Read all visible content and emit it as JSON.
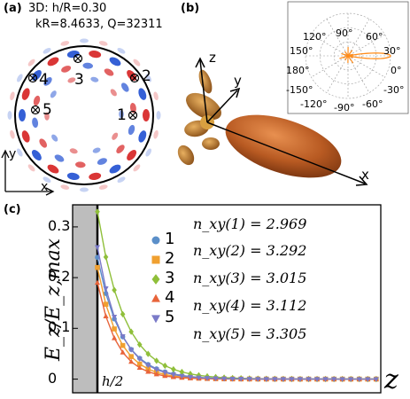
{
  "panel_a": {
    "label": "(a)",
    "line1": "3D: h/R=0.30",
    "line2": "kR=8.4633, Q=32311",
    "marker_labels": [
      "1",
      "2",
      "3",
      "4",
      "5"
    ],
    "axis_x": "x",
    "axis_y": "y",
    "colors": {
      "positive": "#d62020",
      "negative": "#1f4fd1",
      "boundary": "#000000"
    }
  },
  "panel_b": {
    "label": "(b)",
    "axis_x": "x",
    "axis_y": "y",
    "axis_z": "z",
    "polar_ticks": [
      "120°",
      "90°",
      "60°",
      "150°",
      "30°",
      "180°",
      "0°",
      "-150°",
      "-30°",
      "-120°",
      "-90°",
      "-60°"
    ],
    "colors": {
      "lobe": "#c86a2a",
      "polar_line": "#ff8c1a"
    }
  },
  "panel_c": {
    "label": "(c)",
    "ylabel": "E_z/E_z,max",
    "xlabel": "z",
    "boundary_label": "h/2",
    "nxy_lines": [
      "n_xy(1) = 2.969",
      "n_xy(2) = 3.292",
      "n_xy(3) = 3.015",
      "n_xy(4) = 3.112",
      "n_xy(5) = 3.305"
    ]
  },
  "chart_data": {
    "type": "scatter",
    "xlabel": "z",
    "ylabel": "Ez/Ez,max",
    "yticks": [
      0,
      0.1,
      0.2,
      0.3
    ],
    "ylim": [
      -0.02,
      0.34
    ],
    "xlim": [
      0,
      1
    ],
    "x": [
      0.0,
      0.03,
      0.06,
      0.09,
      0.12,
      0.15,
      0.18,
      0.21,
      0.24,
      0.27,
      0.3,
      0.33,
      0.36,
      0.39,
      0.42,
      0.45,
      0.48,
      0.51,
      0.54,
      0.57,
      0.6,
      0.63,
      0.66,
      0.69,
      0.72,
      0.75,
      0.78,
      0.81,
      0.84,
      0.87,
      0.9,
      0.93,
      0.96,
      0.99
    ],
    "series": [
      {
        "name": "1",
        "color": "#5b8fc9",
        "marker": "circle",
        "decay": 0.085,
        "amplitude": 0.24
      },
      {
        "name": "2",
        "color": "#f0a030",
        "marker": "square",
        "decay": 0.075,
        "amplitude": 0.22
      },
      {
        "name": "3",
        "color": "#8fbf3a",
        "marker": "diamond",
        "decay": 0.095,
        "amplitude": 0.33
      },
      {
        "name": "4",
        "color": "#e8643a",
        "marker": "triangle-up",
        "decay": 0.07,
        "amplitude": 0.19
      },
      {
        "name": "5",
        "color": "#7a7ac8",
        "marker": "triangle-down",
        "decay": 0.08,
        "amplitude": 0.26
      }
    ]
  }
}
